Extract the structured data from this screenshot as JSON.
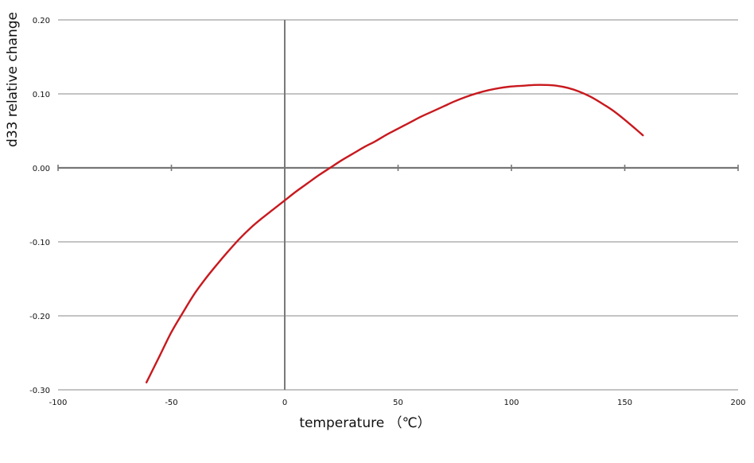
{
  "chart_data": {
    "type": "line",
    "xlabel": "temperature （℃）",
    "ylabel": "d33 relative change",
    "xlim": [
      -100,
      200
    ],
    "ylim": [
      -0.3,
      0.2
    ],
    "x_ticks": [
      -100,
      -50,
      0,
      50,
      100,
      150,
      200
    ],
    "x_tick_labels": [
      "-100",
      "-50",
      "0",
      "50",
      "100",
      "150",
      "200"
    ],
    "y_ticks": [
      -0.3,
      -0.2,
      -0.1,
      0.0,
      0.1,
      0.2
    ],
    "y_tick_labels": [
      "-0.30",
      "-0.20",
      "-0.10",
      "0.00",
      "0.10",
      "0.20"
    ],
    "grid": "horizontal",
    "series": [
      {
        "color": "#c8191e",
        "x": [
          -61,
          -55,
          -50,
          -45,
          -40,
          -35,
          -30,
          -25,
          -20,
          -15,
          -10,
          -5,
          0,
          5,
          10,
          15,
          20,
          25,
          30,
          35,
          40,
          45,
          50,
          55,
          60,
          65,
          70,
          75,
          80,
          85,
          90,
          95,
          100,
          105,
          110,
          115,
          120,
          125,
          130,
          135,
          140,
          145,
          150,
          155,
          158
        ],
        "values": [
          -0.29,
          -0.253,
          -0.222,
          -0.196,
          -0.171,
          -0.15,
          -0.131,
          -0.113,
          -0.096,
          -0.081,
          -0.068,
          -0.056,
          -0.044,
          -0.032,
          -0.021,
          -0.01,
          0.0,
          0.01,
          0.019,
          0.028,
          0.036,
          0.045,
          0.053,
          0.061,
          0.069,
          0.076,
          0.083,
          0.09,
          0.096,
          0.101,
          0.105,
          0.108,
          0.11,
          0.111,
          0.112,
          0.112,
          0.111,
          0.108,
          0.103,
          0.096,
          0.087,
          0.077,
          0.065,
          0.052,
          0.044
        ]
      }
    ]
  }
}
